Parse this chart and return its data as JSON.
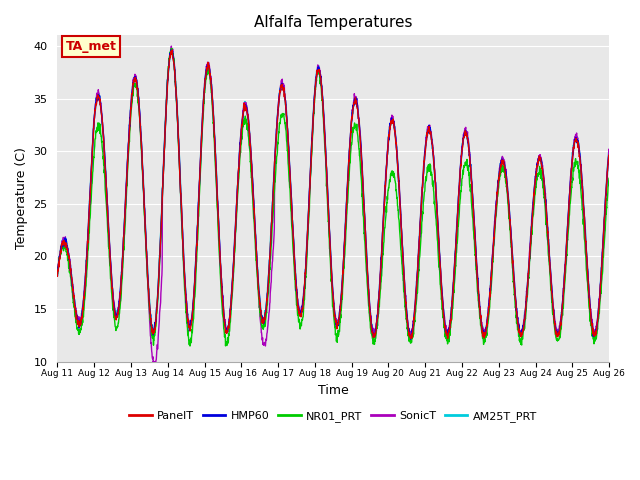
{
  "title": "Alfalfa Temperatures",
  "xlabel": "Time",
  "ylabel": "Temperature (C)",
  "ylim": [
    10,
    41
  ],
  "yticks": [
    10,
    15,
    20,
    25,
    30,
    35,
    40
  ],
  "annotation_text": "TA_met",
  "series_order": [
    "AM25T_PRT",
    "HMP60",
    "PanelT",
    "SonicT",
    "NR01_PRT"
  ],
  "plot_bg_color": "#e8e8e8",
  "fig_bg_color": "#ffffff",
  "legend_colors": {
    "PanelT": "#dd0000",
    "HMP60": "#0000dd",
    "NR01_PRT": "#00cc00",
    "SonicT": "#aa00bb",
    "AM25T_PRT": "#00ccdd"
  },
  "x_tick_labels": [
    "Aug 11",
    "Aug 12",
    "Aug 13",
    "Aug 14",
    "Aug 15",
    "Aug 16",
    "Aug 17",
    "Aug 18",
    "Aug 19",
    "Aug 20",
    "Aug 21",
    "Aug 22",
    "Aug 23",
    "Aug 24",
    "Aug 25",
    "Aug 26"
  ],
  "x_tick_positions": [
    0,
    1,
    2,
    3,
    4,
    5,
    6,
    7,
    8,
    9,
    10,
    11,
    12,
    13,
    14,
    15
  ],
  "day_peaks": [
    19,
    35,
    36.5,
    39.5,
    38.5,
    34,
    36,
    38,
    35,
    33,
    32,
    32,
    29,
    29,
    31,
    32
  ],
  "day_troughs": [
    12,
    14.5,
    14,
    12,
    14,
    12,
    15,
    14,
    13,
    12,
    12.5,
    12.5,
    12.5,
    12.5,
    12.5,
    12.5
  ],
  "sonic_peaks": [
    19,
    33.5,
    23.5,
    35.5,
    20.5,
    36,
    20,
    20.5,
    35,
    27,
    20,
    19,
    20,
    18,
    20,
    20
  ],
  "sonic_troughs": [
    12,
    14.5,
    14,
    12,
    14,
    12,
    15,
    14,
    13,
    12,
    12.5,
    12.5,
    12.5,
    12.5,
    12.5,
    12.5
  ],
  "nr01_peaks": [
    19,
    32,
    36,
    39.8,
    38.3,
    33,
    33,
    38,
    33,
    28,
    28.5,
    29,
    28.5,
    28,
    29,
    29
  ],
  "nr01_troughs": [
    12,
    13.5,
    13,
    11.8,
    11.8,
    11.8,
    14,
    13,
    12,
    12,
    12,
    12,
    12,
    12,
    12,
    12
  ]
}
